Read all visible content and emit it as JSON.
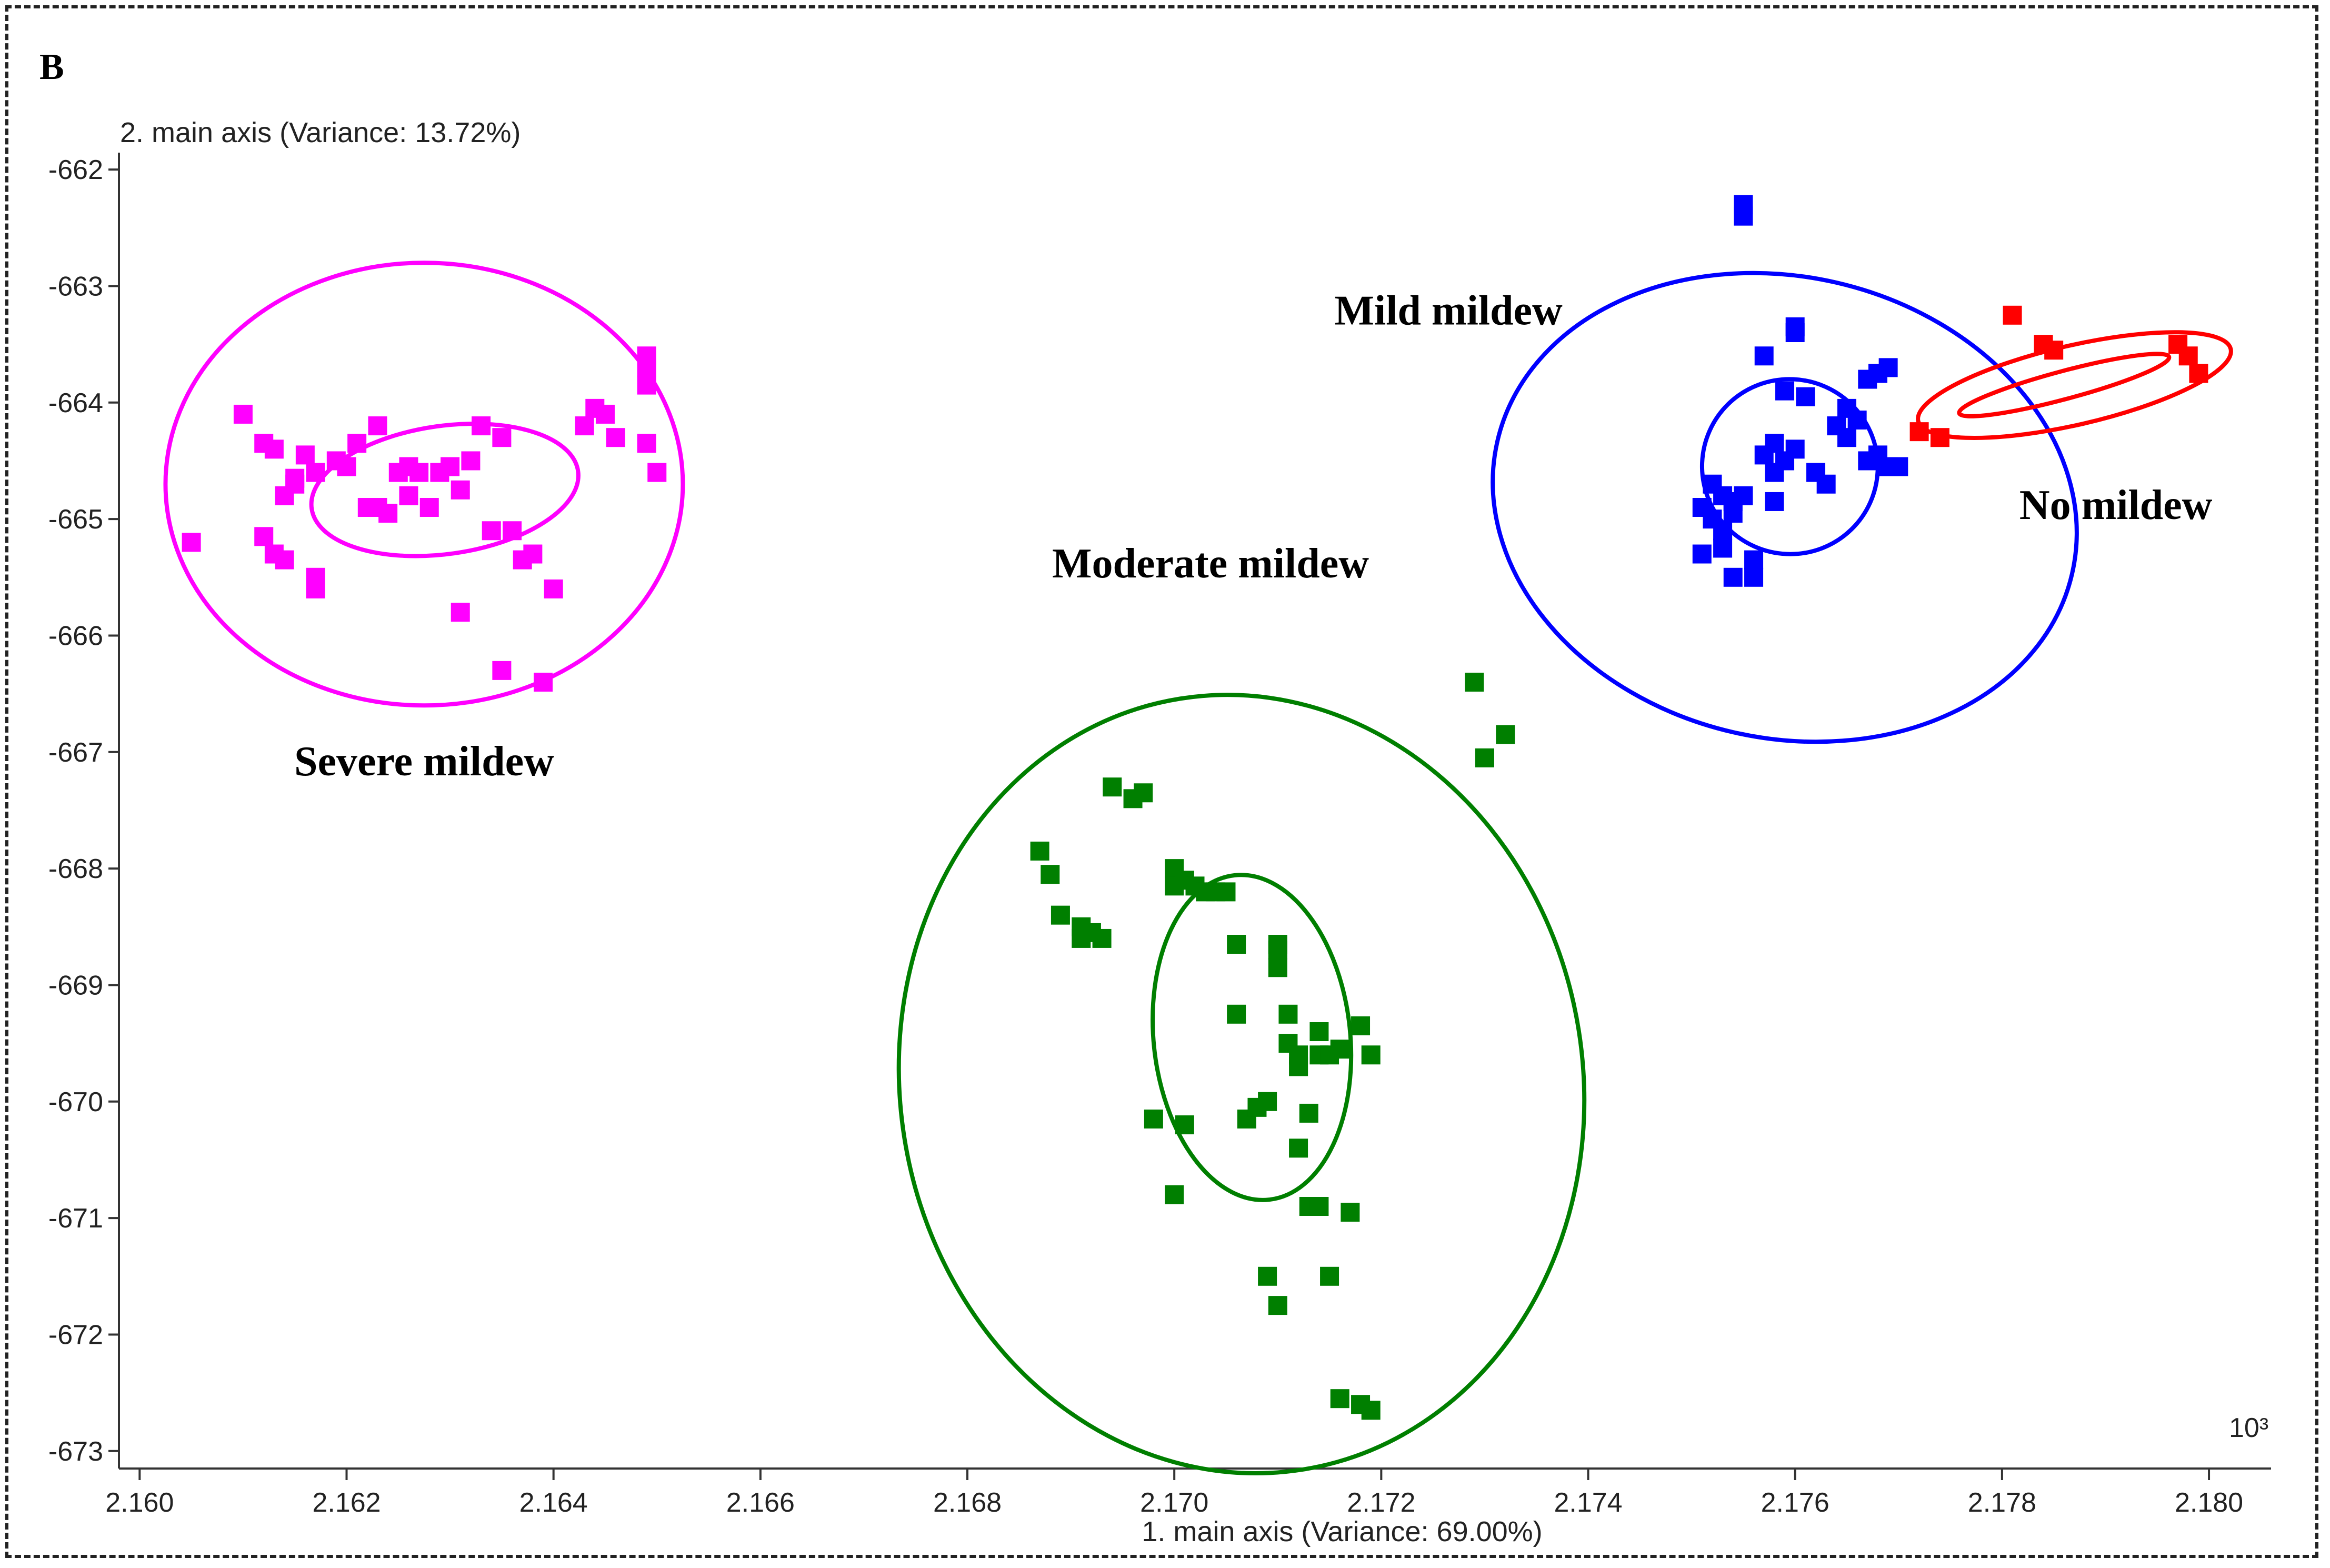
{
  "panel_label": "B",
  "chart_data": {
    "type": "scatter",
    "title": "",
    "xlabel": "1. main axis (Variance: 69.00%)",
    "ylabel": "2. main axis (Variance: 13.72%)",
    "x_multiplier_label": "10³",
    "xlim": [
      2.1598,
      2.1806
    ],
    "ylim": [
      -673.15,
      -661.9
    ],
    "x_ticks": [
      "2.160",
      "2.162",
      "2.164",
      "2.166",
      "2.168",
      "2.170",
      "2.172",
      "2.174",
      "2.176",
      "2.178",
      "2.180"
    ],
    "y_ticks": [
      "-662",
      "-663",
      "-664",
      "-665",
      "-666",
      "-667",
      "-668",
      "-669",
      "-670",
      "-671",
      "-672",
      "-673"
    ],
    "grid": false,
    "series": [
      {
        "name": "Severe mildew",
        "color": "#ff00ff",
        "ellipses": [
          {
            "cx": 2.16275,
            "cy": -664.7,
            "rx": 0.0025,
            "ry": 1.9,
            "angle": 0
          },
          {
            "cx": 2.16295,
            "cy": -664.75,
            "rx": 0.0013,
            "ry": 0.55,
            "angle": -8
          }
        ],
        "points": [
          [
            2.1605,
            -665.2
          ],
          [
            2.161,
            -664.1
          ],
          [
            2.1612,
            -664.35
          ],
          [
            2.1613,
            -664.4
          ],
          [
            2.1612,
            -665.15
          ],
          [
            2.1613,
            -665.3
          ],
          [
            2.1614,
            -665.35
          ],
          [
            2.1614,
            -664.8
          ],
          [
            2.1615,
            -664.7
          ],
          [
            2.1615,
            -664.65
          ],
          [
            2.1616,
            -664.45
          ],
          [
            2.1617,
            -665.5
          ],
          [
            2.1617,
            -665.6
          ],
          [
            2.1617,
            -664.6
          ],
          [
            2.1619,
            -664.5
          ],
          [
            2.162,
            -664.55
          ],
          [
            2.1621,
            -664.35
          ],
          [
            2.1622,
            -664.9
          ],
          [
            2.1623,
            -664.2
          ],
          [
            2.1623,
            -664.9
          ],
          [
            2.1624,
            -664.95
          ],
          [
            2.1625,
            -664.6
          ],
          [
            2.1626,
            -664.8
          ],
          [
            2.1626,
            -664.55
          ],
          [
            2.1627,
            -664.6
          ],
          [
            2.1628,
            -664.9
          ],
          [
            2.1629,
            -664.6
          ],
          [
            2.163,
            -664.55
          ],
          [
            2.1631,
            -664.75
          ],
          [
            2.1631,
            -665.8
          ],
          [
            2.1632,
            -664.5
          ],
          [
            2.1633,
            -664.2
          ],
          [
            2.1634,
            -665.1
          ],
          [
            2.1635,
            -664.3
          ],
          [
            2.1635,
            -666.3
          ],
          [
            2.1636,
            -665.1
          ],
          [
            2.1637,
            -665.35
          ],
          [
            2.1638,
            -665.3
          ],
          [
            2.1639,
            -666.4
          ],
          [
            2.164,
            -665.6
          ],
          [
            2.1643,
            -664.2
          ],
          [
            2.1644,
            -664.05
          ],
          [
            2.1645,
            -664.1
          ],
          [
            2.1646,
            -664.3
          ],
          [
            2.1649,
            -663.6
          ],
          [
            2.1649,
            -663.7
          ],
          [
            2.1649,
            -663.85
          ],
          [
            2.1649,
            -664.35
          ],
          [
            2.165,
            -664.6
          ]
        ]
      },
      {
        "name": "Moderate mildew",
        "color": "#007f00",
        "ellipses": [
          {
            "cx": 2.17065,
            "cy": -669.85,
            "rx": 0.0033,
            "ry": 3.35,
            "angle": -9
          },
          {
            "cx": 2.17075,
            "cy": -669.45,
            "rx": 0.00095,
            "ry": 1.4,
            "angle": -6
          }
        ],
        "points": [
          [
            2.1687,
            -667.85
          ],
          [
            2.1688,
            -668.05
          ],
          [
            2.1689,
            -668.4
          ],
          [
            2.1691,
            -668.5
          ],
          [
            2.1691,
            -668.6
          ],
          [
            2.1692,
            -668.55
          ],
          [
            2.1693,
            -668.6
          ],
          [
            2.1694,
            -667.3
          ],
          [
            2.1696,
            -667.4
          ],
          [
            2.1697,
            -667.35
          ],
          [
            2.1698,
            -670.15
          ],
          [
            2.17,
            -668.0
          ],
          [
            2.17,
            -668.15
          ],
          [
            2.17,
            -670.8
          ],
          [
            2.1701,
            -668.1
          ],
          [
            2.1701,
            -670.2
          ],
          [
            2.1702,
            -668.15
          ],
          [
            2.1703,
            -668.2
          ],
          [
            2.1704,
            -668.2
          ],
          [
            2.1705,
            -668.2
          ],
          [
            2.1706,
            -668.65
          ],
          [
            2.1706,
            -669.25
          ],
          [
            2.1707,
            -670.15
          ],
          [
            2.1708,
            -670.05
          ],
          [
            2.1709,
            -670.0
          ],
          [
            2.1709,
            -671.5
          ],
          [
            2.171,
            -668.7
          ],
          [
            2.171,
            -668.65
          ],
          [
            2.171,
            -668.85
          ],
          [
            2.171,
            -671.75
          ],
          [
            2.1711,
            -669.25
          ],
          [
            2.1711,
            -669.5
          ],
          [
            2.1712,
            -669.6
          ],
          [
            2.1712,
            -669.7
          ],
          [
            2.1712,
            -670.4
          ],
          [
            2.1713,
            -670.1
          ],
          [
            2.1713,
            -670.9
          ],
          [
            2.1714,
            -669.4
          ],
          [
            2.1714,
            -669.6
          ],
          [
            2.1714,
            -670.9
          ],
          [
            2.1715,
            -671.5
          ],
          [
            2.1715,
            -669.6
          ],
          [
            2.1716,
            -672.55
          ],
          [
            2.1716,
            -669.55
          ],
          [
            2.1717,
            -670.95
          ],
          [
            2.1718,
            -672.6
          ],
          [
            2.1718,
            -669.35
          ],
          [
            2.1719,
            -672.65
          ],
          [
            2.1719,
            -669.6
          ],
          [
            2.1729,
            -666.4
          ],
          [
            2.173,
            -667.05
          ],
          [
            2.1732,
            -666.85
          ]
        ]
      },
      {
        "name": "Mild mildew",
        "color": "#0000ff",
        "ellipses": [
          {
            "cx": 2.1759,
            "cy": -664.9,
            "rx": 0.00285,
            "ry": 1.98,
            "angle": 13
          },
          {
            "cx": 2.17595,
            "cy": -664.55,
            "rx": 0.00085,
            "ry": 0.75,
            "angle": 24
          }
        ],
        "points": [
          [
            2.1751,
            -664.9
          ],
          [
            2.1751,
            -665.3
          ],
          [
            2.1752,
            -664.7
          ],
          [
            2.1752,
            -665.0
          ],
          [
            2.1753,
            -664.8
          ],
          [
            2.1753,
            -665.1
          ],
          [
            2.1753,
            -665.25
          ],
          [
            2.1754,
            -664.85
          ],
          [
            2.1754,
            -665.5
          ],
          [
            2.1754,
            -664.95
          ],
          [
            2.1755,
            -664.8
          ],
          [
            2.1755,
            -662.4
          ],
          [
            2.1755,
            -662.3
          ],
          [
            2.1756,
            -665.5
          ],
          [
            2.1756,
            -665.35
          ],
          [
            2.1757,
            -663.6
          ],
          [
            2.1757,
            -664.45
          ],
          [
            2.1758,
            -664.35
          ],
          [
            2.1758,
            -664.6
          ],
          [
            2.1758,
            -664.85
          ],
          [
            2.1759,
            -664.5
          ],
          [
            2.1759,
            -663.9
          ],
          [
            2.176,
            -663.4
          ],
          [
            2.176,
            -663.35
          ],
          [
            2.176,
            -664.4
          ],
          [
            2.1761,
            -663.95
          ],
          [
            2.1762,
            -664.6
          ],
          [
            2.1763,
            -664.7
          ],
          [
            2.1764,
            -664.2
          ],
          [
            2.1765,
            -664.05
          ],
          [
            2.1766,
            -664.15
          ],
          [
            2.1767,
            -664.5
          ],
          [
            2.1768,
            -664.45
          ],
          [
            2.1769,
            -664.55
          ],
          [
            2.1767,
            -663.8
          ],
          [
            2.1768,
            -663.75
          ],
          [
            2.1769,
            -663.7
          ],
          [
            2.177,
            -664.55
          ],
          [
            2.1765,
            -664.3
          ]
        ]
      },
      {
        "name": "No mildew",
        "color": "#ff0000",
        "ellipses": [
          {
            "cx": 2.1787,
            "cy": -663.85,
            "rx": 0.00155,
            "ry": 0.34,
            "angle": -13
          },
          {
            "cx": 2.1786,
            "cy": -663.85,
            "rx": 0.00105,
            "ry": 0.12,
            "angle": -15
          }
        ],
        "points": [
          [
            2.1772,
            -664.25
          ],
          [
            2.1774,
            -664.3
          ],
          [
            2.1781,
            -663.25
          ],
          [
            2.1784,
            -663.5
          ],
          [
            2.1785,
            -663.55
          ],
          [
            2.1797,
            -663.5
          ],
          [
            2.1798,
            -663.6
          ],
          [
            2.1799,
            -663.75
          ]
        ]
      }
    ],
    "annotations": [
      {
        "text": "Severe mildew",
        "x": 2.16275,
        "y": -667.2
      },
      {
        "text": "Moderate mildew",
        "x": 2.17035,
        "y": -665.5
      },
      {
        "text": "Mild mildew",
        "x": 2.17265,
        "y": -663.33
      },
      {
        "text": "No mildew",
        "x": 2.1791,
        "y": -665.0
      }
    ]
  }
}
